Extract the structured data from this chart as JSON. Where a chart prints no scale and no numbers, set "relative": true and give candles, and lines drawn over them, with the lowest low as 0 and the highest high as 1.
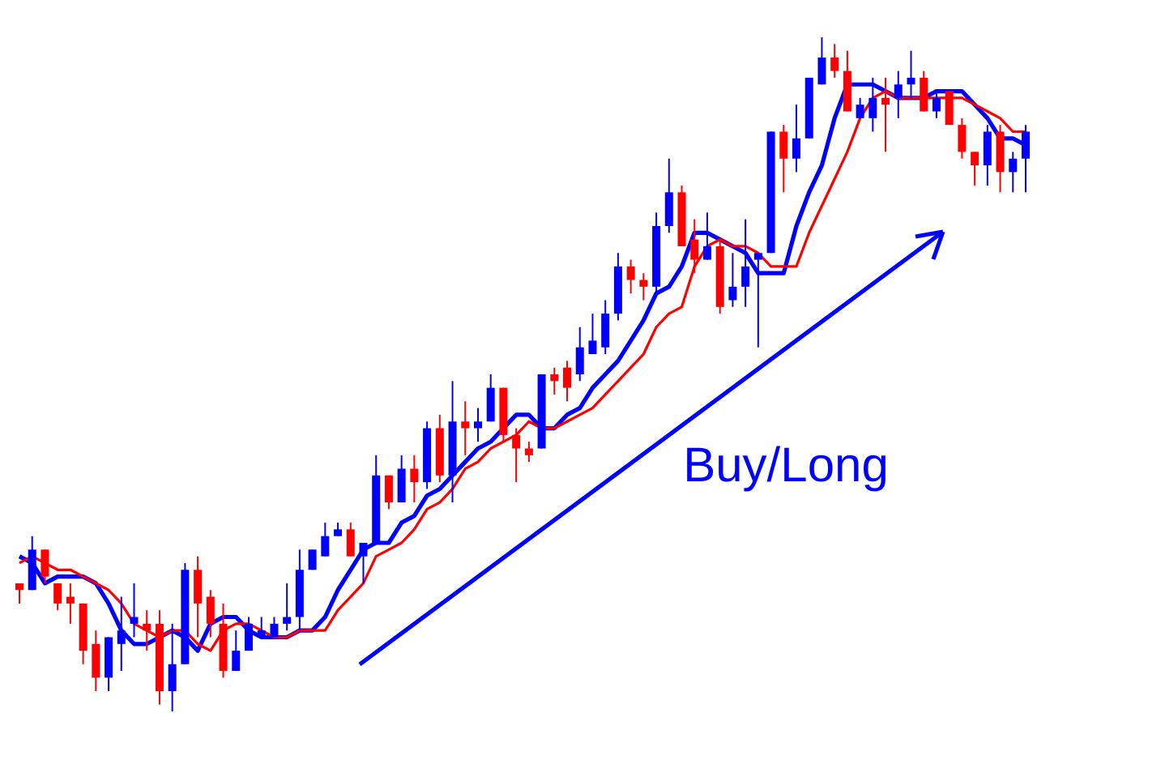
{
  "chart_data": {
    "type": "candlestick",
    "relative": true,
    "categories": [
      null,
      null,
      null,
      null,
      null,
      null,
      null,
      null,
      null,
      null,
      null,
      null,
      null,
      null,
      null,
      null,
      null,
      null,
      null,
      null,
      null,
      null,
      null,
      null,
      null,
      null,
      null,
      null,
      null,
      null,
      null,
      null,
      null,
      null,
      null,
      null,
      null,
      null,
      null,
      null,
      null,
      null,
      null,
      null,
      null,
      null,
      null,
      null,
      null,
      null,
      null,
      null,
      null,
      null,
      null,
      null,
      null,
      null,
      null,
      null,
      null,
      null,
      null,
      null,
      null,
      null,
      null,
      null,
      null,
      null,
      null,
      null,
      null,
      null,
      null,
      null,
      null,
      null,
      null,
      null
    ],
    "ohlc": [
      [
        0.19,
        0.19,
        0.16,
        0.18
      ],
      [
        0.18,
        0.26,
        0.18,
        0.24
      ],
      [
        0.24,
        0.24,
        0.19,
        0.2
      ],
      [
        0.19,
        0.19,
        0.15,
        0.16
      ],
      [
        0.17,
        0.19,
        0.13,
        0.16
      ],
      [
        0.16,
        0.16,
        0.07,
        0.09
      ],
      [
        0.1,
        0.12,
        0.03,
        0.05
      ],
      [
        0.05,
        0.11,
        0.03,
        0.11
      ],
      [
        0.1,
        0.17,
        0.06,
        0.12
      ],
      [
        0.13,
        0.19,
        0.11,
        0.14
      ],
      [
        0.13,
        0.15,
        0.09,
        0.12
      ],
      [
        0.13,
        0.15,
        0.01,
        0.03
      ],
      [
        0.03,
        0.13,
        0,
        0.07
      ],
      [
        0.07,
        0.22,
        0.07,
        0.21
      ],
      [
        0.21,
        0.23,
        0.11,
        0.16
      ],
      [
        0.17,
        0.18,
        0.11,
        0.13
      ],
      [
        0.13,
        0.16,
        0.05,
        0.06
      ],
      [
        0.06,
        0.12,
        0.06,
        0.09
      ],
      [
        0.09,
        0.14,
        0.09,
        0.13
      ],
      [
        0.11,
        0.14,
        0.11,
        0.12
      ],
      [
        0.11,
        0.14,
        0.11,
        0.13
      ],
      [
        0.13,
        0.19,
        0.12,
        0.14
      ],
      [
        0.14,
        0.24,
        0.12,
        0.21
      ],
      [
        0.21,
        0.24,
        0.21,
        0.24
      ],
      [
        0.23,
        0.28,
        0.23,
        0.26
      ],
      [
        0.26,
        0.28,
        0.26,
        0.27
      ],
      [
        0.27,
        0.28,
        0.23,
        0.23
      ],
      [
        0.23,
        0.25,
        0.19,
        0.25
      ],
      [
        0.25,
        0.38,
        0.25,
        0.35
      ],
      [
        0.35,
        0.35,
        0.3,
        0.31
      ],
      [
        0.31,
        0.38,
        0.31,
        0.36
      ],
      [
        0.36,
        0.38,
        0.31,
        0.34
      ],
      [
        0.34,
        0.43,
        0.33,
        0.42
      ],
      [
        0.42,
        0.44,
        0.34,
        0.35
      ],
      [
        0.35,
        0.49,
        0.31,
        0.43
      ],
      [
        0.43,
        0.46,
        0.38,
        0.42
      ],
      [
        0.42,
        0.45,
        0.4,
        0.43
      ],
      [
        0.43,
        0.5,
        0.43,
        0.48
      ],
      [
        0.48,
        0.48,
        0.4,
        0.41
      ],
      [
        0.41,
        0.42,
        0.34,
        0.39
      ],
      [
        0.39,
        0.4,
        0.37,
        0.38
      ],
      [
        0.39,
        0.5,
        0.39,
        0.5
      ],
      [
        0.5,
        0.51,
        0.47,
        0.49
      ],
      [
        0.51,
        0.52,
        0.46,
        0.48
      ],
      [
        0.5,
        0.57,
        0.49,
        0.54
      ],
      [
        0.53,
        0.59,
        0.53,
        0.55
      ],
      [
        0.54,
        0.61,
        0.53,
        0.59
      ],
      [
        0.59,
        0.68,
        0.58,
        0.66
      ],
      [
        0.66,
        0.67,
        0.62,
        0.64
      ],
      [
        0.64,
        0.65,
        0.61,
        0.63
      ],
      [
        0.63,
        0.74,
        0.62,
        0.72
      ],
      [
        0.72,
        0.82,
        0.71,
        0.77
      ],
      [
        0.77,
        0.78,
        0.69,
        0.69
      ],
      [
        0.7,
        0.73,
        0.65,
        0.67
      ],
      [
        0.67,
        0.74,
        0.67,
        0.69
      ],
      [
        0.69,
        0.7,
        0.59,
        0.6
      ],
      [
        0.61,
        0.68,
        0.6,
        0.63
      ],
      [
        0.63,
        0.73,
        0.6,
        0.66
      ],
      [
        0.67,
        0.68,
        0.54,
        0.68
      ],
      [
        0.68,
        0.86,
        0.68,
        0.86
      ],
      [
        0.86,
        0.87,
        0.77,
        0.82
      ],
      [
        0.82,
        0.9,
        0.8,
        0.85
      ],
      [
        0.85,
        0.94,
        0.85,
        0.94
      ],
      [
        0.93,
        1,
        0.93,
        0.97
      ],
      [
        0.97,
        0.99,
        0.94,
        0.95
      ],
      [
        0.95,
        0.98,
        0.89,
        0.89
      ],
      [
        0.88,
        0.91,
        0.88,
        0.9
      ],
      [
        0.88,
        0.94,
        0.86,
        0.91
      ],
      [
        0.91,
        0.94,
        0.83,
        0.9
      ],
      [
        0.91,
        0.95,
        0.88,
        0.93
      ],
      [
        0.93,
        0.98,
        0.91,
        0.94
      ],
      [
        0.94,
        0.95,
        0.89,
        0.89
      ],
      [
        0.89,
        0.92,
        0.88,
        0.91
      ],
      [
        0.92,
        0.92,
        0.87,
        0.87
      ],
      [
        0.87,
        0.88,
        0.82,
        0.83
      ],
      [
        0.83,
        0.83,
        0.78,
        0.81
      ],
      [
        0.81,
        0.87,
        0.78,
        0.86
      ],
      [
        0.86,
        0.87,
        0.77,
        0.8
      ],
      [
        0.8,
        0.83,
        0.77,
        0.82
      ],
      [
        0.82,
        0.87,
        0.77,
        0.86
      ]
    ],
    "colors": [
      "#ff0000",
      "#0000ff",
      "#ff0000",
      "#ff0000",
      "#ff0000",
      "#ff0000",
      "#ff0000",
      "#0000ff",
      "#0000ff",
      "#0000ff",
      "#ff0000",
      "#ff0000",
      "#0000ff",
      "#0000ff",
      "#ff0000",
      "#ff0000",
      "#ff0000",
      "#0000ff",
      "#0000ff",
      "#0000ff",
      "#0000ff",
      "#0000ff",
      "#0000ff",
      "#0000ff",
      "#0000ff",
      "#0000ff",
      "#ff0000",
      "#0000ff",
      "#0000ff",
      "#ff0000",
      "#0000ff",
      "#ff0000",
      "#0000ff",
      "#ff0000",
      "#0000ff",
      "#ff0000",
      "#0000ff",
      "#0000ff",
      "#ff0000",
      "#ff0000",
      "#ff0000",
      "#0000ff",
      "#ff0000",
      "#ff0000",
      "#0000ff",
      "#0000ff",
      "#0000ff",
      "#0000ff",
      "#ff0000",
      "#ff0000",
      "#0000ff",
      "#0000ff",
      "#ff0000",
      "#ff0000",
      "#0000ff",
      "#ff0000",
      "#0000ff",
      "#0000ff",
      "#0000ff",
      "#0000ff",
      "#ff0000",
      "#0000ff",
      "#0000ff",
      "#0000ff",
      "#ff0000",
      "#ff0000",
      "#0000ff",
      "#0000ff",
      "#ff0000",
      "#0000ff",
      "#0000ff",
      "#ff0000",
      "#0000ff",
      "#ff0000",
      "#ff0000",
      "#ff0000",
      "#0000ff",
      "#ff0000",
      "#0000ff",
      "#0000ff"
    ],
    "series": [
      {
        "type": "line",
        "color": "#0000ff",
        "values": [
          0.23,
          0.22,
          0.19,
          0.2,
          0.2,
          0.2,
          0.19,
          0.16,
          0.12,
          0.1,
          0.1,
          0.11,
          0.12,
          0.11,
          0.09,
          0.13,
          0.14,
          0.14,
          0.12,
          0.11,
          0.11,
          0.11,
          0.12,
          0.12,
          0.14,
          0.18,
          0.21,
          0.24,
          0.25,
          0.25,
          0.28,
          0.29,
          0.32,
          0.33,
          0.35,
          0.37,
          0.39,
          0.4,
          0.42,
          0.44,
          0.44,
          0.42,
          0.42,
          0.44,
          0.45,
          0.48,
          0.5,
          0.52,
          0.55,
          0.58,
          0.62,
          0.63,
          0.66,
          0.71,
          0.71,
          0.7,
          0.69,
          0.68,
          0.65,
          0.65,
          0.65,
          0.72,
          0.77,
          0.81,
          0.88,
          0.93,
          0.93,
          0.93,
          0.92,
          0.91,
          0.91,
          0.91,
          0.92,
          0.92,
          0.92,
          0.9,
          0.88,
          0.85,
          0.85,
          0.84
        ]
      },
      {
        "type": "line",
        "color": "#ff0000",
        "values": [
          0.22,
          0.23,
          0.22,
          0.21,
          0.21,
          0.2,
          0.19,
          0.18,
          0.16,
          0.13,
          0.12,
          0.11,
          0.12,
          0.12,
          0.1,
          0.09,
          0.12,
          0.13,
          0.13,
          0.12,
          0.11,
          0.11,
          0.12,
          0.12,
          0.12,
          0.15,
          0.17,
          0.19,
          0.23,
          0.24,
          0.25,
          0.27,
          0.3,
          0.31,
          0.33,
          0.36,
          0.37,
          0.39,
          0.4,
          0.41,
          0.43,
          0.42,
          0.42,
          0.43,
          0.44,
          0.45,
          0.47,
          0.49,
          0.51,
          0.53,
          0.57,
          0.59,
          0.6,
          0.66,
          0.69,
          0.7,
          0.69,
          0.69,
          0.68,
          0.66,
          0.66,
          0.66,
          0.71,
          0.75,
          0.79,
          0.83,
          0.88,
          0.91,
          0.92,
          0.91,
          0.91,
          0.91,
          0.91,
          0.91,
          0.91,
          0.9,
          0.89,
          0.88,
          0.86,
          0.86
        ]
      }
    ],
    "annotations": [
      "Buy/Long"
    ]
  }
}
